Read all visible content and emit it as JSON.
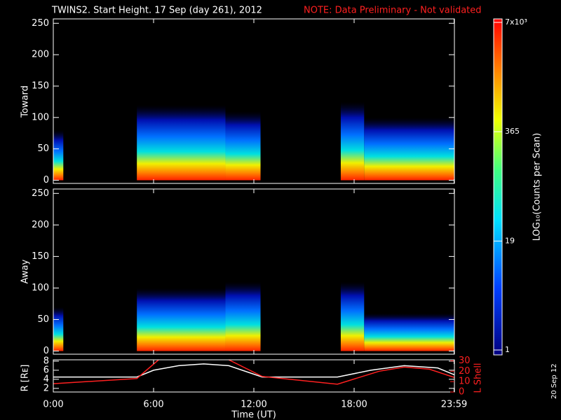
{
  "title": "TWINS2. Start Height. 17 Sep (day 261), 2012",
  "note": "NOTE: Data Preliminary - Not validated",
  "date_stamp": "20 Sep 12",
  "chart_data": [
    {
      "type": "spectrogram",
      "ylabel": "Toward",
      "xlim": [
        0,
        24
      ],
      "ylim": [
        -5,
        257
      ],
      "yticks": [
        0,
        50,
        100,
        150,
        200,
        250
      ],
      "segments": [
        {
          "start": 0,
          "end": 0.6,
          "top": 80
        },
        {
          "start": 5,
          "end": 10.3,
          "top": 120
        },
        {
          "start": 10.3,
          "end": 12.4,
          "top": 110
        },
        {
          "start": 17.2,
          "end": 18.6,
          "top": 125
        },
        {
          "start": 18.6,
          "end": 24,
          "top": 100
        }
      ]
    },
    {
      "type": "spectrogram",
      "ylabel": "Away",
      "xlim": [
        0,
        24
      ],
      "ylim": [
        -5,
        257
      ],
      "yticks": [
        0,
        50,
        100,
        150,
        200,
        250
      ],
      "segments": [
        {
          "start": 0,
          "end": 0.6,
          "top": 70
        },
        {
          "start": 5,
          "end": 10.3,
          "top": 100
        },
        {
          "start": 10.3,
          "end": 12.4,
          "top": 110
        },
        {
          "start": 17.2,
          "end": 18.6,
          "top": 110
        },
        {
          "start": 18.6,
          "end": 24,
          "top": 60
        }
      ]
    },
    {
      "type": "line",
      "ylabel": "R [Rᴇ]",
      "y2label": "L Shell",
      "xlabel": "Time (UT)",
      "xlim": [
        0,
        24
      ],
      "xticks": [
        {
          "value": 0,
          "label": "0:00"
        },
        {
          "value": 6,
          "label": "6:00"
        },
        {
          "value": 12,
          "label": "12:00"
        },
        {
          "value": 18,
          "label": "18:00"
        },
        {
          "value": 23.98,
          "label": "23:59"
        }
      ],
      "ylim": [
        1.2,
        8.3
      ],
      "yticks": [
        2,
        4,
        6,
        8
      ],
      "y2lim": [
        0,
        31
      ],
      "y2ticks": [
        0,
        10,
        20,
        30
      ],
      "series": [
        {
          "color": "#ffffff",
          "x": [
            0,
            5,
            6,
            7.5,
            9,
            10.5,
            12.5,
            17,
            19,
            21,
            23,
            24
          ],
          "values": [
            4.5,
            4.5,
            6,
            7,
            7.4,
            7,
            4.5,
            4.5,
            6,
            7,
            6.5,
            5
          ]
        },
        {
          "color": "#ff2020",
          "axis": "y2",
          "x": [
            0,
            5,
            6.3,
            8,
            10.5,
            12.5,
            17,
            19.5,
            21,
            22.5,
            24
          ],
          "values": [
            8,
            13,
            31,
            null,
            31,
            15,
            7.5,
            20,
            24,
            22,
            14
          ]
        }
      ]
    },
    {
      "type": "colorbar",
      "label": "LOG₁₀(Counts per Scan)",
      "zlim": [
        1,
        7000
      ],
      "log": true,
      "ticks": [
        {
          "value": 7000,
          "label": "7x10³"
        },
        365,
        19,
        1
      ]
    }
  ]
}
